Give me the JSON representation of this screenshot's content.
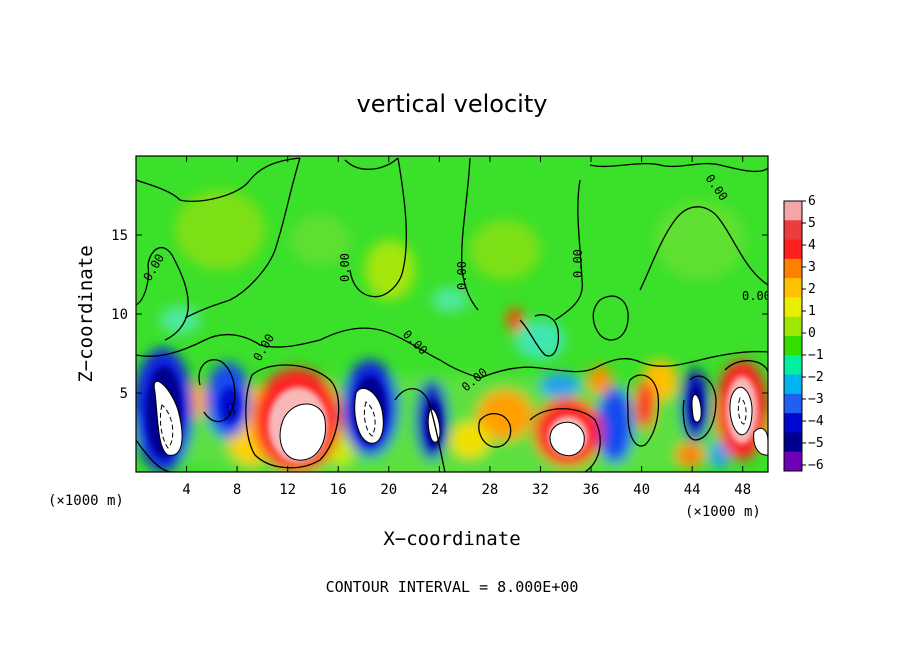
{
  "chart_data": {
    "type": "heatmap",
    "title": "vertical velocity",
    "xlabel": "X−coordinate",
    "ylabel": "Z−coordinate",
    "x_unit": "(×1000 m)",
    "xlim": [
      0,
      50
    ],
    "ylim": [
      0,
      20
    ],
    "x_ticks": [
      "4",
      "8",
      "12",
      "16",
      "20",
      "24",
      "28",
      "32",
      "36",
      "40",
      "44",
      "48"
    ],
    "y_ticks": [
      "5",
      "10",
      "15"
    ],
    "colorbar": {
      "ticks": [
        "6",
        "5",
        "4",
        "3",
        "2",
        "1",
        "0",
        "−1",
        "−2",
        "−3",
        "−4",
        "−5",
        "−6"
      ],
      "colors": [
        "#f4a6a6",
        "#ee3b3b",
        "#ff2020",
        "#ff7f00",
        "#ffc000",
        "#e8f000",
        "#9ce800",
        "#38dd00",
        "#00f0a0",
        "#00b4f0",
        "#2060f0",
        "#0008d0",
        "#000090",
        "#7000b8"
      ]
    },
    "contour_labels": [
      "0.00",
      "0.00",
      "0.00",
      "0.00",
      "0.00",
      "0.00",
      "0.00",
      "0.00",
      "0.00"
    ],
    "updrafts": [
      {
        "x": 2.5,
        "z": 3.0,
        "w": -7
      },
      {
        "x": 7.5,
        "z": 3.5,
        "w": -5
      },
      {
        "x": 14.0,
        "z": 2.5,
        "w": 8
      },
      {
        "x": 18.5,
        "z": 3.5,
        "w": -7
      },
      {
        "x": 23.5,
        "z": 3.0,
        "w": -6
      },
      {
        "x": 29.0,
        "z": 4.0,
        "w": 3
      },
      {
        "x": 34.0,
        "z": 2.0,
        "w": 7
      },
      {
        "x": 40.0,
        "z": 4.0,
        "w": 4
      },
      {
        "x": 44.5,
        "z": 4.0,
        "w": -6
      },
      {
        "x": 48.0,
        "z": 4.0,
        "w": 7
      }
    ],
    "grid": false
  },
  "footer": "CONTOUR INTERVAL = 8.000E+00"
}
